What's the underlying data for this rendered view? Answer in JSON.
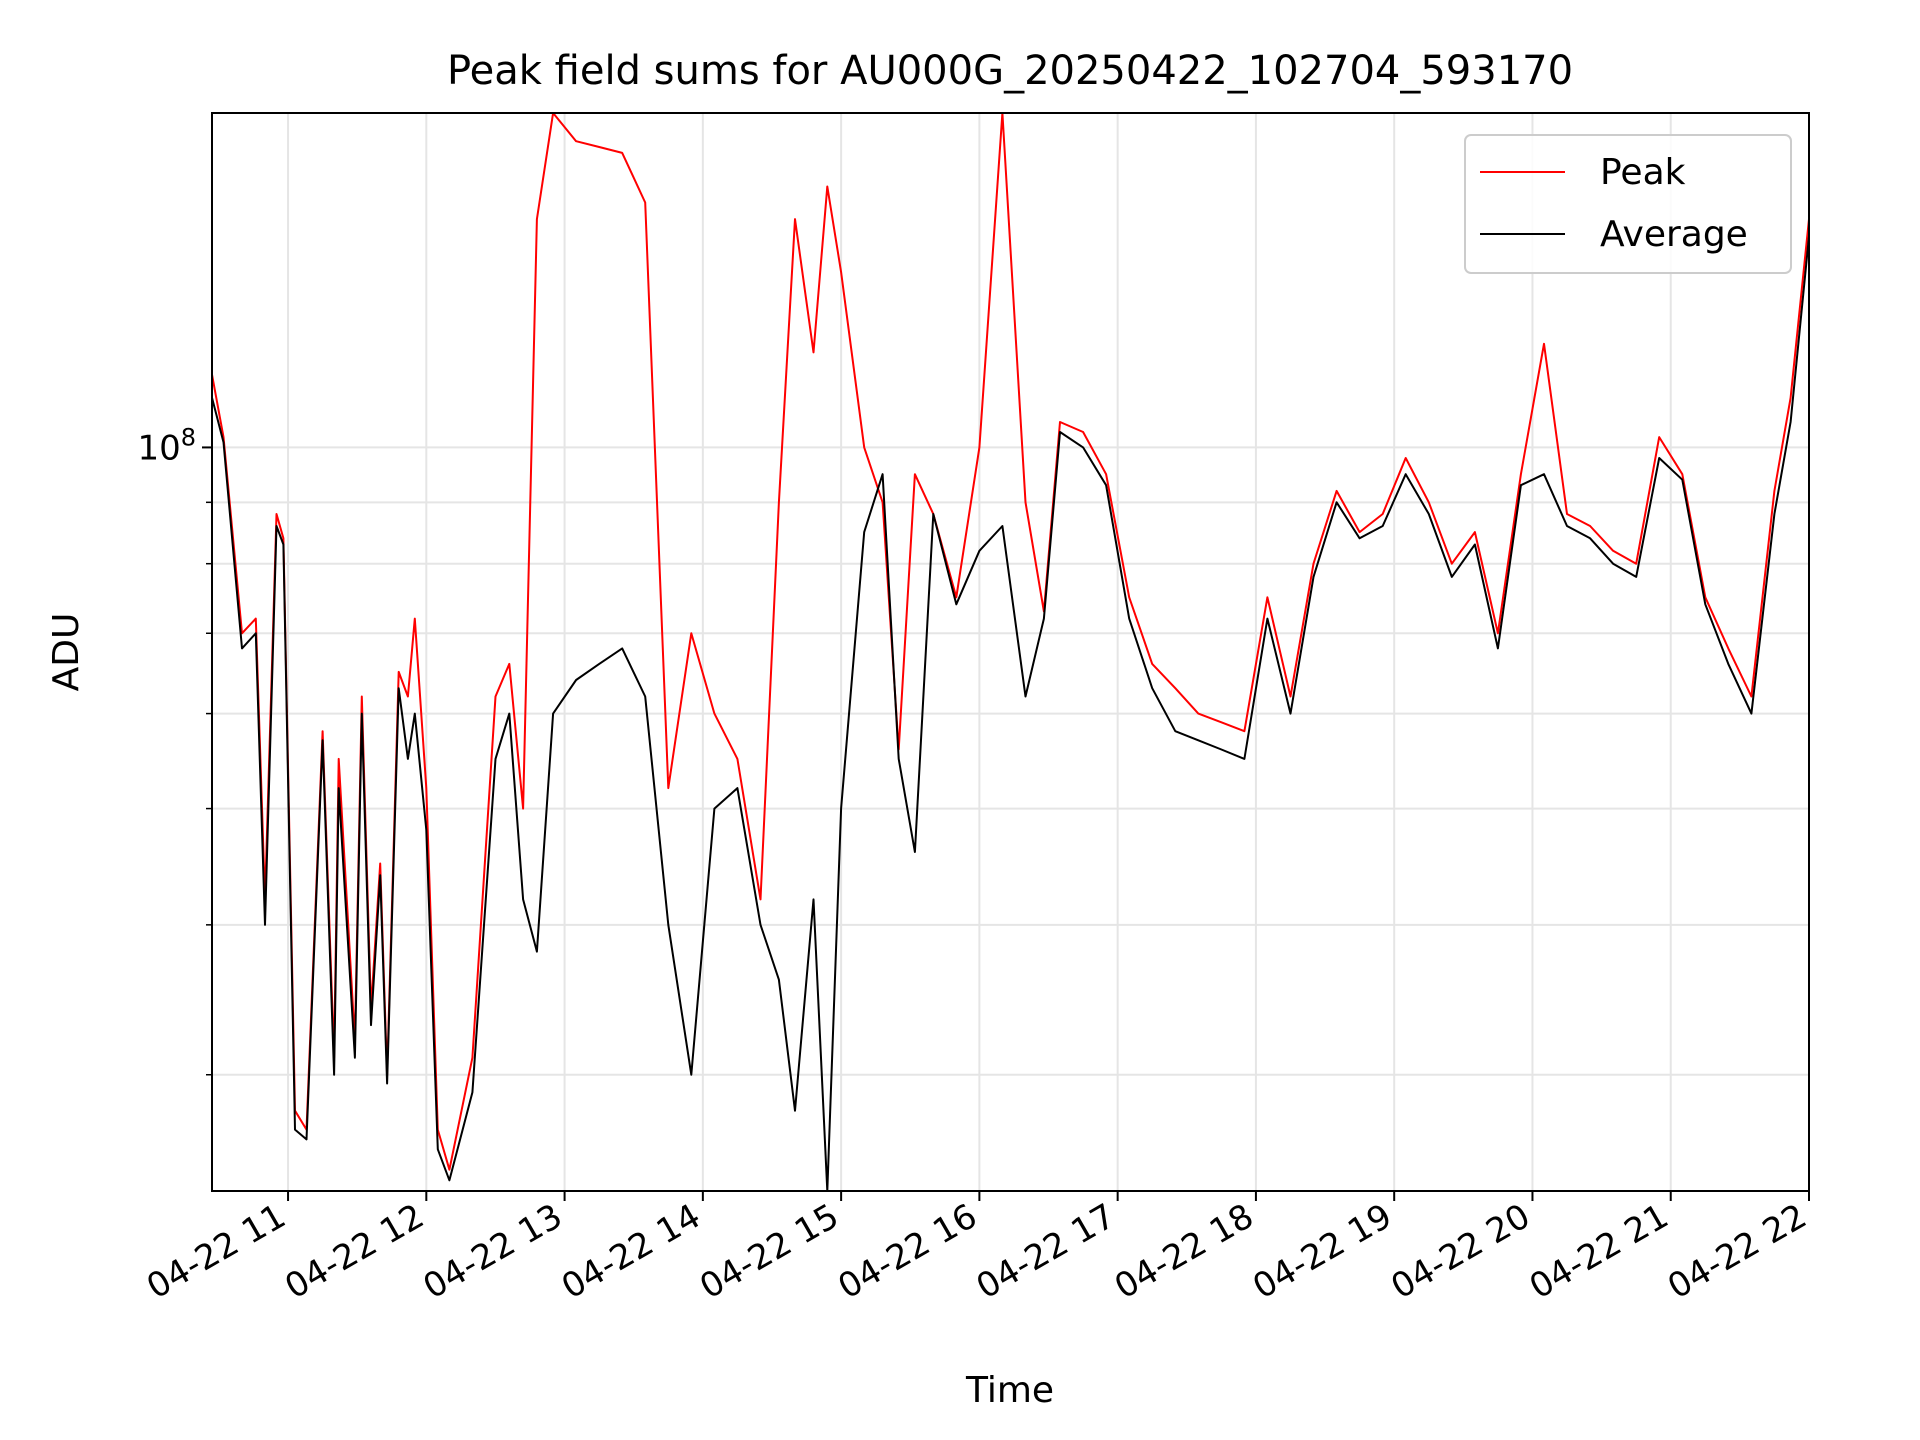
{
  "chart_data": {
    "type": "line",
    "title": "Peak field sums for AU000G_20250422_102704_593170",
    "xlabel": "Time",
    "ylabel": "ADU",
    "y_scale": "log",
    "xlim": [
      "2025-04-22 10:27",
      "2025-04-22 22:00"
    ],
    "ylim": [
      24000000,
      190000000
    ],
    "x_ticks": [
      "04-22 11",
      "04-22 12",
      "04-22 13",
      "04-22 14",
      "04-22 15",
      "04-22 16",
      "04-22 17",
      "04-22 18",
      "04-22 19",
      "04-22 20",
      "04-22 21",
      "04-22 22"
    ],
    "y_tick_labels": [
      {
        "value": 100000000,
        "label": "10^8"
      }
    ],
    "y_minor_ticks": [
      30000000,
      40000000,
      50000000,
      60000000,
      70000000,
      80000000,
      90000000,
      200000000
    ],
    "grid": true,
    "legend_position": "top-right",
    "series": [
      {
        "name": "Peak",
        "color": "#ff0000",
        "x": [
          "2025-04-22 10:27",
          "2025-04-22 10:32",
          "2025-04-22 10:40",
          "2025-04-22 10:46",
          "2025-04-22 10:50",
          "2025-04-22 10:55",
          "2025-04-22 10:58",
          "2025-04-22 11:03",
          "2025-04-22 11:08",
          "2025-04-22 11:15",
          "2025-04-22 11:20",
          "2025-04-22 11:22",
          "2025-04-22 11:29",
          "2025-04-22 11:32",
          "2025-04-22 11:36",
          "2025-04-22 11:40",
          "2025-04-22 11:43",
          "2025-04-22 11:48",
          "2025-04-22 11:52",
          "2025-04-22 11:55",
          "2025-04-22 12:00",
          "2025-04-22 12:05",
          "2025-04-22 12:10",
          "2025-04-22 12:20",
          "2025-04-22 12:30",
          "2025-04-22 12:36",
          "2025-04-22 12:42",
          "2025-04-22 12:48",
          "2025-04-22 12:55",
          "2025-04-22 13:05",
          "2025-04-22 13:15",
          "2025-04-22 13:25",
          "2025-04-22 13:35",
          "2025-04-22 13:45",
          "2025-04-22 13:55",
          "2025-04-22 14:05",
          "2025-04-22 14:15",
          "2025-04-22 14:25",
          "2025-04-22 14:33",
          "2025-04-22 14:40",
          "2025-04-22 14:48",
          "2025-04-22 14:54",
          "2025-04-22 15:00",
          "2025-04-22 15:10",
          "2025-04-22 15:18",
          "2025-04-22 15:25",
          "2025-04-22 15:32",
          "2025-04-22 15:40",
          "2025-04-22 15:50",
          "2025-04-22 16:00",
          "2025-04-22 16:10",
          "2025-04-22 16:20",
          "2025-04-22 16:28",
          "2025-04-22 16:35",
          "2025-04-22 16:45",
          "2025-04-22 16:55",
          "2025-04-22 17:05",
          "2025-04-22 17:15",
          "2025-04-22 17:25",
          "2025-04-22 17:35",
          "2025-04-22 17:45",
          "2025-04-22 17:55",
          "2025-04-22 18:05",
          "2025-04-22 18:15",
          "2025-04-22 18:25",
          "2025-04-22 18:35",
          "2025-04-22 18:45",
          "2025-04-22 18:55",
          "2025-04-22 19:05",
          "2025-04-22 19:15",
          "2025-04-22 19:25",
          "2025-04-22 19:35",
          "2025-04-22 19:45",
          "2025-04-22 19:55",
          "2025-04-22 20:05",
          "2025-04-22 20:15",
          "2025-04-22 20:25",
          "2025-04-22 20:35",
          "2025-04-22 20:45",
          "2025-04-22 20:55",
          "2025-04-22 21:05",
          "2025-04-22 21:15",
          "2025-04-22 21:25",
          "2025-04-22 21:35",
          "2025-04-22 21:45",
          "2025-04-22 21:52",
          "2025-04-22 22:00"
        ],
        "values": [
          115000000,
          102000000,
          70000000,
          72000000,
          42000000,
          88000000,
          84000000,
          28000000,
          27000000,
          58000000,
          31000000,
          55000000,
          32000000,
          62000000,
          34000000,
          45000000,
          30000000,
          65000000,
          62000000,
          72000000,
          52000000,
          27000000,
          25000000,
          31000000,
          62000000,
          66000000,
          50000000,
          155000000,
          190000000,
          180000000,
          178000000,
          176000000,
          160000000,
          52000000,
          70000000,
          60000000,
          55000000,
          42000000,
          90000000,
          155000000,
          120000000,
          165000000,
          140000000,
          100000000,
          90000000,
          56000000,
          95000000,
          88000000,
          75000000,
          100000000,
          190000000,
          90000000,
          73000000,
          105000000,
          103000000,
          95000000,
          75000000,
          66000000,
          63000000,
          60000000,
          59000000,
          58000000,
          75000000,
          62000000,
          80000000,
          92000000,
          85000000,
          88000000,
          98000000,
          90000000,
          80000000,
          85000000,
          70000000,
          95000000,
          122000000,
          88000000,
          86000000,
          82000000,
          80000000,
          102000000,
          95000000,
          75000000,
          68000000,
          62000000,
          92000000,
          110000000,
          155000000
        ]
      },
      {
        "name": "Average",
        "color": "#000000",
        "x": [
          "2025-04-22 10:27",
          "2025-04-22 10:32",
          "2025-04-22 10:40",
          "2025-04-22 10:46",
          "2025-04-22 10:50",
          "2025-04-22 10:55",
          "2025-04-22 10:58",
          "2025-04-22 11:03",
          "2025-04-22 11:08",
          "2025-04-22 11:15",
          "2025-04-22 11:20",
          "2025-04-22 11:22",
          "2025-04-22 11:29",
          "2025-04-22 11:32",
          "2025-04-22 11:36",
          "2025-04-22 11:40",
          "2025-04-22 11:43",
          "2025-04-22 11:48",
          "2025-04-22 11:52",
          "2025-04-22 11:55",
          "2025-04-22 12:00",
          "2025-04-22 12:05",
          "2025-04-22 12:10",
          "2025-04-22 12:20",
          "2025-04-22 12:30",
          "2025-04-22 12:36",
          "2025-04-22 12:42",
          "2025-04-22 12:48",
          "2025-04-22 12:55",
          "2025-04-22 13:05",
          "2025-04-22 13:15",
          "2025-04-22 13:25",
          "2025-04-22 13:35",
          "2025-04-22 13:45",
          "2025-04-22 13:55",
          "2025-04-22 14:05",
          "2025-04-22 14:15",
          "2025-04-22 14:25",
          "2025-04-22 14:33",
          "2025-04-22 14:40",
          "2025-04-22 14:48",
          "2025-04-22 14:54",
          "2025-04-22 15:00",
          "2025-04-22 15:10",
          "2025-04-22 15:18",
          "2025-04-22 15:25",
          "2025-04-22 15:32",
          "2025-04-22 15:40",
          "2025-04-22 15:50",
          "2025-04-22 16:00",
          "2025-04-22 16:10",
          "2025-04-22 16:20",
          "2025-04-22 16:28",
          "2025-04-22 16:35",
          "2025-04-22 16:45",
          "2025-04-22 16:55",
          "2025-04-22 17:05",
          "2025-04-22 17:15",
          "2025-04-22 17:25",
          "2025-04-22 17:35",
          "2025-04-22 17:45",
          "2025-04-22 17:55",
          "2025-04-22 18:05",
          "2025-04-22 18:15",
          "2025-04-22 18:25",
          "2025-04-22 18:35",
          "2025-04-22 18:45",
          "2025-04-22 18:55",
          "2025-04-22 19:05",
          "2025-04-22 19:15",
          "2025-04-22 19:25",
          "2025-04-22 19:35",
          "2025-04-22 19:45",
          "2025-04-22 19:55",
          "2025-04-22 20:05",
          "2025-04-22 20:15",
          "2025-04-22 20:25",
          "2025-04-22 20:35",
          "2025-04-22 20:45",
          "2025-04-22 20:55",
          "2025-04-22 21:05",
          "2025-04-22 21:15",
          "2025-04-22 21:25",
          "2025-04-22 21:35",
          "2025-04-22 21:45",
          "2025-04-22 21:52",
          "2025-04-22 22:00"
        ],
        "values": [
          110000000,
          101000000,
          68000000,
          70000000,
          40000000,
          86000000,
          83000000,
          27000000,
          26500000,
          57000000,
          30000000,
          52000000,
          31000000,
          60000000,
          33000000,
          44000000,
          29500000,
          63000000,
          55000000,
          60000000,
          48000000,
          26000000,
          24500000,
          29000000,
          55000000,
          60000000,
          42000000,
          38000000,
          60000000,
          64000000,
          66000000,
          68000000,
          62000000,
          40000000,
          30000000,
          50000000,
          52000000,
          40000000,
          36000000,
          28000000,
          42000000,
          24000000,
          50000000,
          85000000,
          95000000,
          55000000,
          46000000,
          88000000,
          74000000,
          82000000,
          86000000,
          62000000,
          72000000,
          103000000,
          100000000,
          93000000,
          72000000,
          63000000,
          58000000,
          57000000,
          56000000,
          55000000,
          72000000,
          60000000,
          78000000,
          90000000,
          84000000,
          86000000,
          95000000,
          88000000,
          78000000,
          83000000,
          68000000,
          93000000,
          95000000,
          86000000,
          84000000,
          80000000,
          78000000,
          98000000,
          94000000,
          74000000,
          66000000,
          60000000,
          88000000,
          105000000,
          150000000
        ]
      }
    ]
  }
}
